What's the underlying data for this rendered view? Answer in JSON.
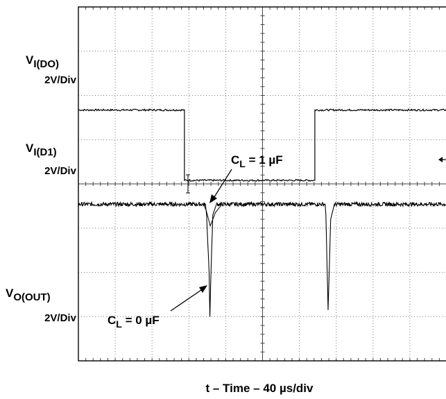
{
  "channels": [
    {
      "name_main": "V",
      "name_sub": "I(DO)",
      "scale": "2V/Div"
    },
    {
      "name_main": "V",
      "name_sub": "I(D1)",
      "scale": "2V/Div"
    },
    {
      "name_main": "V",
      "name_sub": "O(OUT)",
      "scale": "2V/Div"
    }
  ],
  "annotations": [
    {
      "pre": "C",
      "sub": "L",
      "post": " = 1 µF"
    },
    {
      "pre": "C",
      "sub": "L",
      "post": " = 0 µF"
    }
  ],
  "xlabel": "t – Time – 40 µs/div",
  "chart_data": {
    "type": "line",
    "title": "",
    "xlabel": "t – Time – 40 µs/div",
    "ylabel": "",
    "x_unit": "div",
    "y_unit": "div",
    "xlim": [
      0,
      10
    ],
    "ylim": [
      0,
      8
    ],
    "grid": true,
    "series": [
      {
        "name": "V I(D1)",
        "x": [
          0,
          2.88,
          2.88,
          6.42,
          6.42,
          10
        ],
        "y": [
          5.67,
          5.67,
          4.08,
          4.08,
          5.67,
          5.67
        ]
      },
      {
        "name": "V O(OUT)",
        "x": [
          0,
          3.45,
          3.48,
          3.55,
          3.57,
          3.6,
          3.65,
          3.75,
          6.7,
          6.72,
          6.78,
          6.85,
          6.95,
          10
        ],
        "y": [
          3.54,
          3.54,
          3.3,
          2.0,
          1.0,
          2.0,
          3.3,
          3.54,
          3.54,
          3.3,
          1.15,
          3.2,
          3.54,
          3.54
        ]
      }
    ]
  }
}
